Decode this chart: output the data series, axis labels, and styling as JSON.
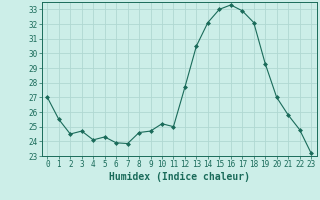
{
  "x": [
    0,
    1,
    2,
    3,
    4,
    5,
    6,
    7,
    8,
    9,
    10,
    11,
    12,
    13,
    14,
    15,
    16,
    17,
    18,
    19,
    20,
    21,
    22,
    23
  ],
  "y": [
    27.0,
    25.5,
    24.5,
    24.7,
    24.1,
    24.3,
    23.9,
    23.85,
    24.6,
    24.7,
    25.2,
    25.0,
    27.7,
    30.5,
    32.1,
    33.0,
    33.3,
    32.9,
    32.1,
    29.3,
    27.0,
    25.8,
    24.8,
    23.2
  ],
  "line_color": "#1a6b5a",
  "marker": "D",
  "marker_size": 2.0,
  "bg_color": "#cceee8",
  "grid_color": "#b0d8d2",
  "xlabel": "Humidex (Indice chaleur)",
  "xlim": [
    -0.5,
    23.5
  ],
  "ylim": [
    23,
    33.5
  ],
  "xticks": [
    0,
    1,
    2,
    3,
    4,
    5,
    6,
    7,
    8,
    9,
    10,
    11,
    12,
    13,
    14,
    15,
    16,
    17,
    18,
    19,
    20,
    21,
    22,
    23
  ],
  "yticks": [
    23,
    24,
    25,
    26,
    27,
    28,
    29,
    30,
    31,
    32,
    33
  ],
  "tick_fontsize": 5.5,
  "xlabel_fontsize": 7.0,
  "axis_color": "#1a6b5a",
  "tick_color": "#1a6b5a",
  "line_width": 0.8
}
